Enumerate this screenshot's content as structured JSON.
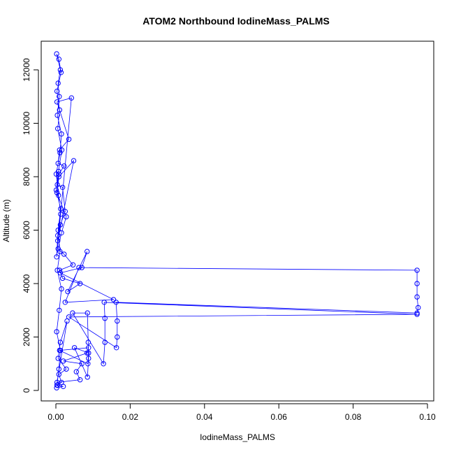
{
  "chart_data": {
    "type": "line",
    "title": "ATOM2 Northbound IodineMass_PALMS",
    "xlabel": "IodineMass_PALMS",
    "ylabel": "Altitude (m)",
    "xlim": [
      -0.003,
      0.1
    ],
    "ylim": [
      0,
      12600
    ],
    "x_ticks": [
      0.0,
      0.02,
      0.04,
      0.06,
      0.08,
      0.1
    ],
    "x_tick_labels": [
      "0.00",
      "0.02",
      "0.04",
      "0.06",
      "0.08",
      "0.10"
    ],
    "y_ticks": [
      0,
      2000,
      4000,
      6000,
      8000,
      10000,
      12000
    ],
    "y_tick_labels": [
      "0",
      "2000",
      "4000",
      "6000",
      "8000",
      "10000",
      "12000"
    ],
    "grid": false,
    "marker": "open-circle",
    "series_color": "#0000ff",
    "series": [
      {
        "x": [
          0.0003,
          0.0008,
          0.0012,
          0.0002,
          0.0009,
          0.0015,
          0.0004,
          0.0011,
          0.0006,
          0.0013,
          0.0001,
          0.0007,
          0.0016,
          0.0005,
          0.001,
          0.0003,
          0.0014,
          0.0008,
          0.0002,
          0.0012,
          0.0006,
          0.0009,
          0.0004,
          0.0015,
          0.0011,
          0.0001,
          0.0007,
          0.0013,
          0.0005,
          0.0002,
          0.0042,
          0.0003,
          0.0035,
          0.001,
          0.0006,
          0.0022,
          0.0008,
          0.0004,
          0.0018,
          0.0025,
          0.0012,
          0.0005,
          0.0048,
          0.0008,
          0.0003,
          0.0028,
          0.0015,
          0.0006,
          0.0022,
          0.0046,
          0.001,
          0.0018,
          0.0065,
          0.0032,
          0.0084,
          0.007,
          0.0012,
          0.0155,
          0.0025,
          0.0062,
          0.0972,
          0.0972,
          0.0972,
          0.0975,
          0.0972,
          0.0162,
          0.0165,
          0.0165,
          0.0163,
          0.0035,
          0.0972,
          0.013,
          0.0132,
          0.0132,
          0.0128,
          0.0045,
          0.0085,
          0.0087,
          0.0088,
          0.0085,
          0.005,
          0.0088,
          0.0086,
          0.001,
          0.0088,
          0.0084,
          0.002,
          0.007,
          0.0055,
          0.0065,
          0.0003,
          0.003,
          0.0012,
          0.0006,
          0.0028,
          0.0008,
          0.0015,
          0.0004,
          0.002,
          0.0002
        ],
        "y": [
          200,
          800,
          1500,
          2200,
          3000,
          3800,
          4500,
          5200,
          6000,
          6800,
          7500,
          8200,
          9000,
          9800,
          10500,
          11200,
          11900,
          12400,
          12600,
          12000,
          11500,
          11000,
          10300,
          9600,
          8900,
          8100,
          7300,
          6600,
          5800,
          5000,
          10950,
          10800,
          9400,
          9000,
          8500,
          8400,
          8100,
          7700,
          7600,
          6700,
          6200,
          5600,
          8600,
          8000,
          7400,
          6500,
          5900,
          5300,
          5100,
          4700,
          4500,
          4200,
          4000,
          3700,
          5200,
          4600,
          4400,
          3400,
          3300,
          4600,
          4500,
          4000,
          3500,
          3100,
          2900,
          3300,
          2600,
          2000,
          1600,
          2750,
          2850,
          3300,
          2700,
          1800,
          1000,
          2900,
          2900,
          1800,
          1200,
          500,
          1600,
          1400,
          1000,
          1500,
          1600,
          1400,
          1100,
          1000,
          700,
          400,
          300,
          2600,
          1800,
          1200,
          800,
          600,
          300,
          200,
          150,
          100
        ]
      }
    ]
  }
}
